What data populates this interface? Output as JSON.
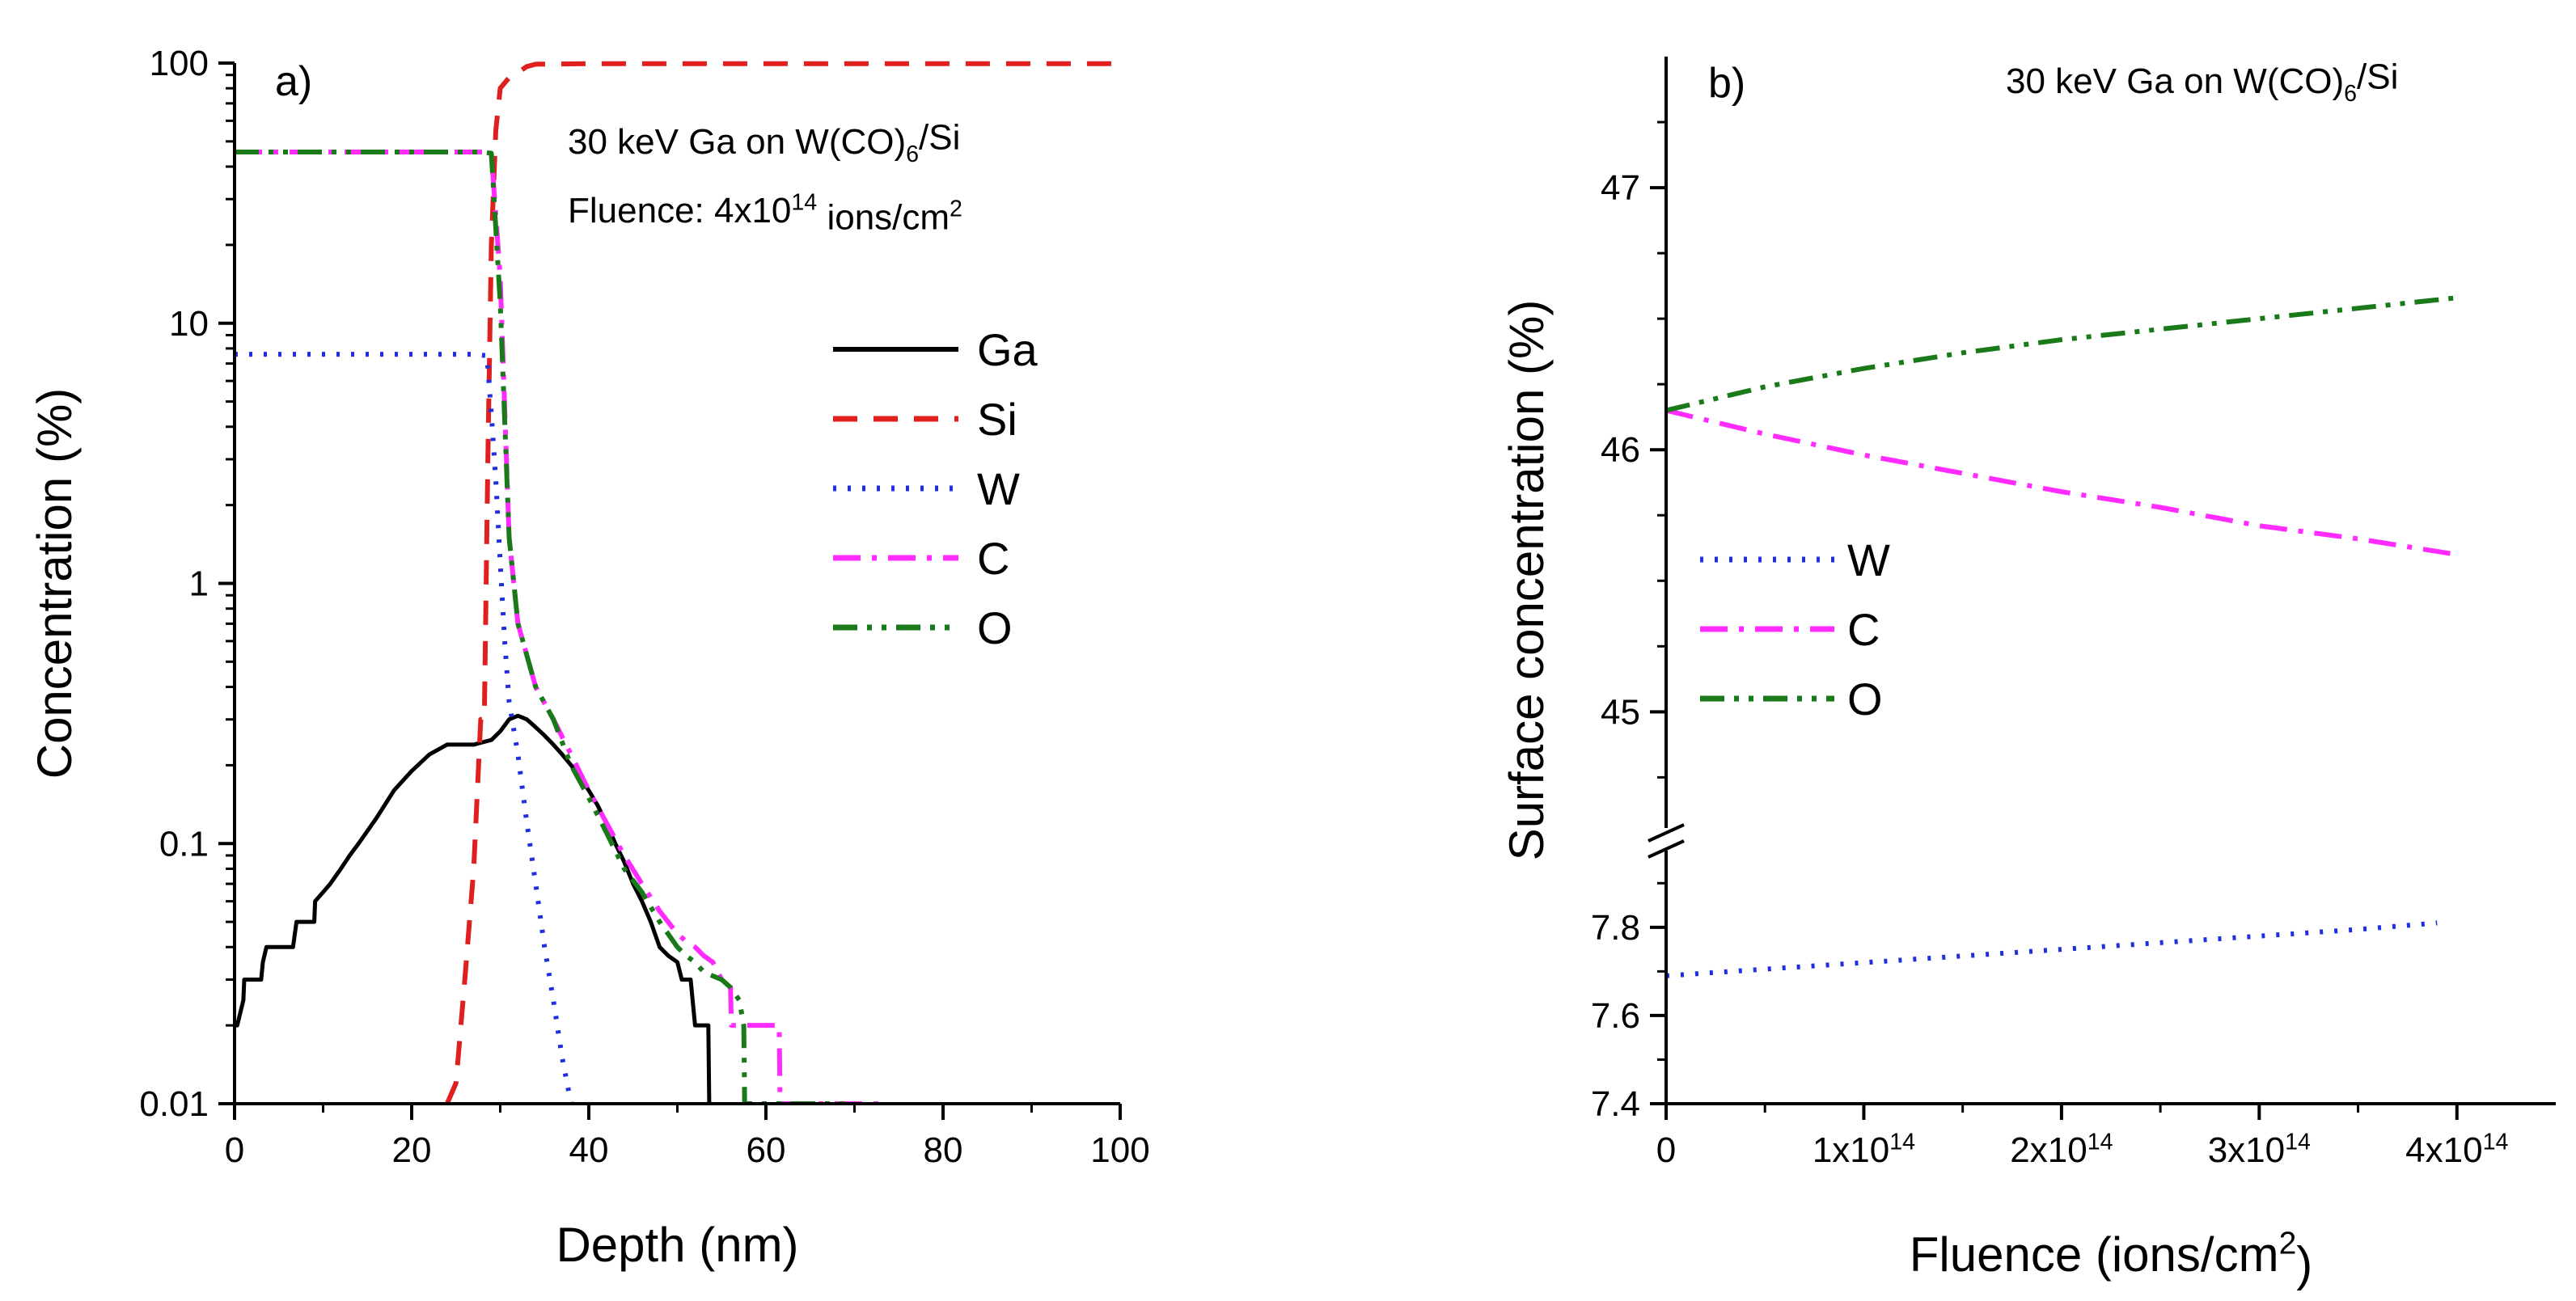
{
  "chart_data": [
    {
      "panel": "a)",
      "type": "line",
      "title": "",
      "annotation_line1": "30 keV Ga on W(CO)6/Si",
      "annotation_line1_parts": {
        "pre": "30 keV Ga on W(CO)",
        "sub": "6",
        "post": "/Si"
      },
      "annotation_line2_parts": {
        "pre": "Fluence: 4x10",
        "sup": "14",
        "post": " ions/cm",
        "sup2": "2"
      },
      "xlabel": "Depth (nm)",
      "ylabel": "Concentration (%)",
      "xlim": [
        0,
        100
      ],
      "ylim": [
        0.01,
        100
      ],
      "yscale": "log",
      "x_ticks": [
        0,
        20,
        40,
        60,
        80,
        100
      ],
      "y_ticks": [
        {
          "value": 100,
          "label": "100"
        },
        {
          "value": 10,
          "label": "10"
        },
        {
          "value": 1,
          "label": "1"
        },
        {
          "value": 0.1,
          "label": "0.1"
        },
        {
          "value": 0.01,
          "label": "0.01"
        }
      ],
      "legend_position": "center-right",
      "series": [
        {
          "name": "Ga",
          "color": "#000000",
          "dash": "solid",
          "x": [
            0,
            0.3,
            1,
            1.1,
            3,
            3.2,
            3.6,
            6.6,
            7,
            9,
            9.1,
            10,
            10.8,
            12,
            13,
            14,
            16,
            18,
            20,
            22,
            24,
            25,
            27,
            28,
            29,
            30,
            31,
            32,
            33,
            34,
            35,
            36,
            37,
            38,
            39,
            40,
            41,
            42,
            43,
            44,
            45,
            46,
            47,
            48,
            49,
            50,
            50.5,
            51,
            51.5,
            52,
            53,
            53.5,
            53.6
          ],
          "y": [
            0.02,
            0.02,
            0.025,
            0.03,
            0.03,
            0.035,
            0.04,
            0.04,
            0.05,
            0.05,
            0.06,
            0.065,
            0.07,
            0.08,
            0.09,
            0.1,
            0.125,
            0.16,
            0.19,
            0.22,
            0.24,
            0.24,
            0.24,
            0.245,
            0.25,
            0.27,
            0.3,
            0.31,
            0.3,
            0.28,
            0.26,
            0.24,
            0.22,
            0.2,
            0.18,
            0.16,
            0.14,
            0.12,
            0.1,
            0.085,
            0.07,
            0.06,
            0.05,
            0.04,
            0.037,
            0.035,
            0.03,
            0.03,
            0.03,
            0.02,
            0.02,
            0.02,
            0.01
          ]
        },
        {
          "name": "Si",
          "color": "#e01f1f",
          "dash": "dashed",
          "x": [
            24,
            25,
            26,
            27,
            27.8,
            28.2,
            28.6,
            29,
            29.5,
            30,
            31,
            32,
            33,
            34,
            40,
            60,
            80,
            100
          ],
          "y": [
            0.01,
            0.012,
            0.03,
            0.08,
            0.3,
            0.3,
            3,
            20,
            55,
            80,
            88,
            92,
            97,
            99,
            99.5,
            99.5,
            99.5,
            99.5
          ]
        },
        {
          "name": "W",
          "color": "#1f2fe0",
          "dash": "dotted",
          "x": [
            0,
            10,
            20,
            27,
            28.5,
            29,
            29.5,
            30,
            30.5,
            31,
            32,
            33,
            34,
            35,
            36,
            37,
            38
          ],
          "y": [
            7.6,
            7.6,
            7.6,
            7.6,
            7.5,
            4.5,
            2.5,
            1.2,
            0.6,
            0.35,
            0.22,
            0.12,
            0.07,
            0.04,
            0.025,
            0.015,
            0.01
          ]
        },
        {
          "name": "C",
          "color": "#ff2bff",
          "dash": "dashdot",
          "x": [
            0,
            10,
            20,
            26,
            28,
            29,
            30,
            31,
            32,
            34,
            36,
            38,
            40,
            42,
            44,
            46,
            48,
            50,
            51,
            52,
            53,
            54,
            55,
            56,
            56.1,
            58,
            60,
            61,
            61.5,
            61.6,
            62,
            65,
            70,
            73
          ],
          "y": [
            45.5,
            45.5,
            45.5,
            45.5,
            45.5,
            45,
            15,
            1.5,
            0.7,
            0.4,
            0.3,
            0.22,
            0.16,
            0.12,
            0.09,
            0.07,
            0.055,
            0.045,
            0.042,
            0.04,
            0.037,
            0.035,
            0.03,
            0.028,
            0.02,
            0.02,
            0.02,
            0.02,
            0.02,
            0.01,
            0.01,
            0.01,
            0.01,
            0.01
          ]
        },
        {
          "name": "O",
          "color": "#1a7a1a",
          "dash": "dashdotdot",
          "x": [
            0,
            10,
            20,
            26,
            28,
            29,
            30,
            31,
            32,
            34,
            36,
            38,
            40,
            42,
            44,
            46,
            48,
            50,
            51,
            52,
            53,
            55,
            56,
            57,
            57.5,
            57.6,
            58,
            60,
            65,
            70
          ],
          "y": [
            45.5,
            45.5,
            45.5,
            45.5,
            45.5,
            45,
            12,
            1.5,
            0.7,
            0.4,
            0.3,
            0.2,
            0.15,
            0.11,
            0.08,
            0.065,
            0.05,
            0.04,
            0.037,
            0.035,
            0.032,
            0.03,
            0.028,
            0.025,
            0.02,
            0.01,
            0.01,
            0.01,
            0.01,
            0.01
          ]
        }
      ]
    },
    {
      "panel": "b)",
      "type": "line",
      "title": "",
      "annotation_line1_parts": {
        "pre": "30 keV Ga on W(CO)",
        "sub": "6",
        "post": "/Si"
      },
      "xlabel_parts": {
        "pre": "Fluence (ions/cm",
        "sup": "2",
        "post": ")"
      },
      "xlabel": "Fluence (ions/cm2)",
      "ylabel": "Surface concentration (%)",
      "xlim": [
        0,
        450000000000000.0
      ],
      "y_axis_break": true,
      "ylim_lower": [
        7.4,
        7.95
      ],
      "ylim_upper": [
        44.6,
        47.5
      ],
      "x_ticks": [
        {
          "value": 0,
          "label": "0"
        },
        {
          "value": 100000000000000.0,
          "label_pre": "1x10",
          "label_sup": "14"
        },
        {
          "value": 200000000000000.0,
          "label_pre": "2x10",
          "label_sup": "14"
        },
        {
          "value": 300000000000000.0,
          "label_pre": "3x10",
          "label_sup": "14"
        },
        {
          "value": 400000000000000.0,
          "label_pre": "4x10",
          "label_sup": "14"
        }
      ],
      "y_ticks_upper": [
        {
          "value": 45,
          "label": "45"
        },
        {
          "value": 46,
          "label": "46"
        },
        {
          "value": 47,
          "label": "47"
        }
      ],
      "y_ticks_lower": [
        {
          "value": 7.4,
          "label": "7.4"
        },
        {
          "value": 7.6,
          "label": "7.6"
        },
        {
          "value": 7.8,
          "label": "7.8"
        }
      ],
      "legend_position": "middle-left",
      "series": [
        {
          "name": "W",
          "color": "#1f2fe0",
          "dash": "dotted",
          "axis": "lower",
          "x": [
            0,
            50000000000000.0,
            100000000000000.0,
            150000000000000.0,
            200000000000000.0,
            250000000000000.0,
            300000000000000.0,
            350000000000000.0,
            390000000000000.0
          ],
          "y": [
            7.69,
            7.705,
            7.72,
            7.735,
            7.75,
            7.765,
            7.78,
            7.795,
            7.81
          ]
        },
        {
          "name": "C",
          "color": "#ff2bff",
          "dash": "dashdot",
          "axis": "upper",
          "x": [
            0,
            50000000000000.0,
            100000000000000.0,
            150000000000000.0,
            200000000000000.0,
            250000000000000.0,
            300000000000000.0,
            350000000000000.0,
            400000000000000.0
          ],
          "y": [
            46.15,
            46.06,
            45.98,
            45.91,
            45.84,
            45.78,
            45.71,
            45.66,
            45.6
          ]
        },
        {
          "name": "O",
          "color": "#1a7a1a",
          "dash": "dashdotdot",
          "axis": "upper",
          "x": [
            0,
            50000000000000.0,
            100000000000000.0,
            150000000000000.0,
            200000000000000.0,
            250000000000000.0,
            300000000000000.0,
            350000000000000.0,
            400000000000000.0
          ],
          "y": [
            46.15,
            46.24,
            46.31,
            46.37,
            46.42,
            46.46,
            46.5,
            46.54,
            46.58
          ]
        }
      ]
    }
  ]
}
